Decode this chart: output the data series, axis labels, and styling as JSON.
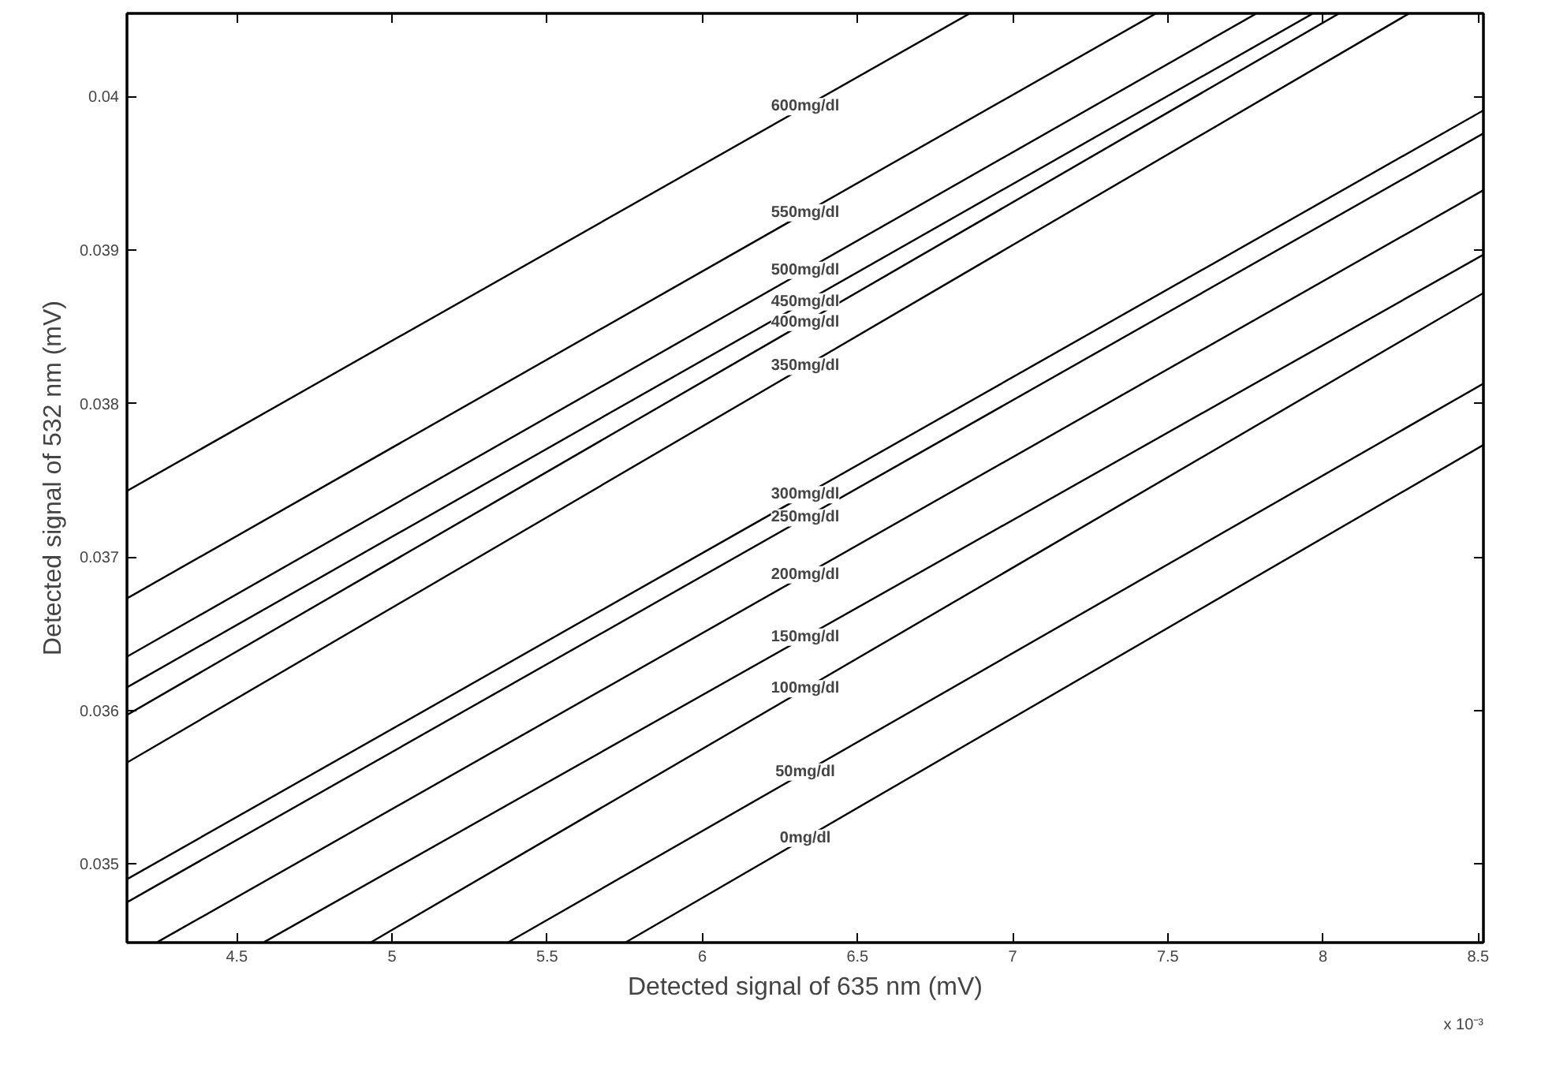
{
  "chart_data": {
    "type": "line",
    "xlabel": "Detected signal of 635 nm (mV)",
    "ylabel": "Detected signal of 532 nm (mV)",
    "xlim": [
      4.146,
      8.517
    ],
    "ylim": [
      0.034487,
      0.040542
    ],
    "xticks": [
      4.5,
      5,
      5.5,
      6,
      6.5,
      7,
      7.5,
      8,
      8.5
    ],
    "yticks": [
      0.035,
      0.036,
      0.037,
      0.038,
      0.039,
      {
        "value": 0.04,
        "label": "0.04"
      }
    ],
    "grid": false,
    "legend": false,
    "marker": "none",
    "line_style": "solid",
    "series": [
      {
        "name": "600mg/dl",
        "color": "#000000",
        "x": [
          4.146,
          6.86
        ],
        "values": [
          0.03743,
          0.04054
        ]
      },
      {
        "name": "550mg/dl",
        "color": "#000000",
        "x": [
          4.146,
          7.46
        ],
        "values": [
          0.03673,
          0.04054
        ]
      },
      {
        "name": "500mg/dl",
        "color": "#000000",
        "x": [
          4.146,
          7.784
        ],
        "values": [
          0.03635,
          0.04054
        ]
      },
      {
        "name": "450mg/dl",
        "color": "#000000",
        "x": [
          4.146,
          7.966
        ],
        "values": [
          0.03615,
          0.04054
        ]
      },
      {
        "name": "400mg/dl",
        "color": "#000000",
        "x": [
          4.146,
          8.05
        ],
        "values": [
          0.03597,
          0.04054
        ]
      },
      {
        "name": "350mg/dl",
        "color": "#000000",
        "x": [
          4.146,
          8.276
        ],
        "values": [
          0.03566,
          0.04054
        ]
      },
      {
        "name": "300mg/dl",
        "color": "#000000",
        "x": [
          4.146,
          8.517
        ],
        "values": [
          0.0349,
          0.03991
        ]
      },
      {
        "name": "250mg/dl",
        "color": "#000000",
        "x": [
          4.146,
          8.517
        ],
        "values": [
          0.03475,
          0.03976
        ]
      },
      {
        "name": "200mg/dl",
        "color": "#000000",
        "x": [
          4.244,
          8.517
        ],
        "values": [
          0.03449,
          0.03939
        ]
      },
      {
        "name": "150mg/dl",
        "color": "#000000",
        "x": [
          4.588,
          8.517
        ],
        "values": [
          0.03449,
          0.03897
        ]
      },
      {
        "name": "100mg/dl",
        "color": "#000000",
        "x": [
          4.933,
          8.517
        ],
        "values": [
          0.03449,
          0.03872
        ]
      },
      {
        "name": "50mg/dl",
        "color": "#000000",
        "x": [
          5.375,
          8.517
        ],
        "values": [
          0.03449,
          0.03813
        ]
      },
      {
        "name": "0mg/dl",
        "color": "#000000",
        "x": [
          5.754,
          8.517
        ],
        "values": [
          0.03449,
          0.03773
        ]
      }
    ],
    "annotations": [
      "x 10⁻³"
    ]
  }
}
